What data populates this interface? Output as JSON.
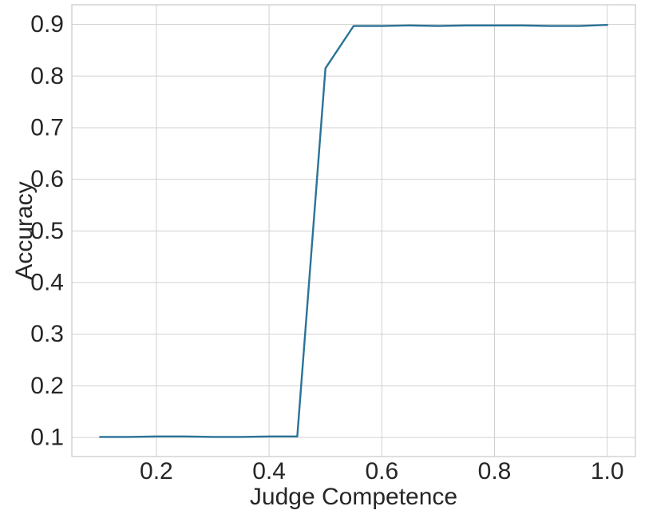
{
  "chart_data": {
    "type": "line",
    "title": "",
    "xlabel": "Judge Competence",
    "ylabel": "Accuracy",
    "xlim": [
      0.05,
      1.05
    ],
    "ylim": [
      0.063,
      0.938
    ],
    "xticks": [
      0.2,
      0.4,
      0.6,
      0.8,
      1.0
    ],
    "xtick_labels": [
      "0.2",
      "0.4",
      "0.6",
      "0.8",
      "1.0"
    ],
    "yticks": [
      0.1,
      0.2,
      0.3,
      0.4,
      0.5,
      0.6,
      0.7,
      0.8,
      0.9
    ],
    "ytick_labels": [
      "0.1",
      "0.2",
      "0.3",
      "0.4",
      "0.5",
      "0.6",
      "0.7",
      "0.8",
      "0.9"
    ],
    "grid": true,
    "series": [
      {
        "color": "#2a7397",
        "x": [
          0.1,
          0.15,
          0.2,
          0.25,
          0.3,
          0.35,
          0.4,
          0.45,
          0.5,
          0.55,
          0.6,
          0.65,
          0.7,
          0.75,
          0.8,
          0.85,
          0.9,
          0.95,
          1.0
        ],
        "y": [
          0.101,
          0.101,
          0.102,
          0.102,
          0.101,
          0.101,
          0.102,
          0.102,
          0.815,
          0.897,
          0.897,
          0.898,
          0.897,
          0.898,
          0.898,
          0.898,
          0.897,
          0.897,
          0.899
        ]
      }
    ]
  }
}
